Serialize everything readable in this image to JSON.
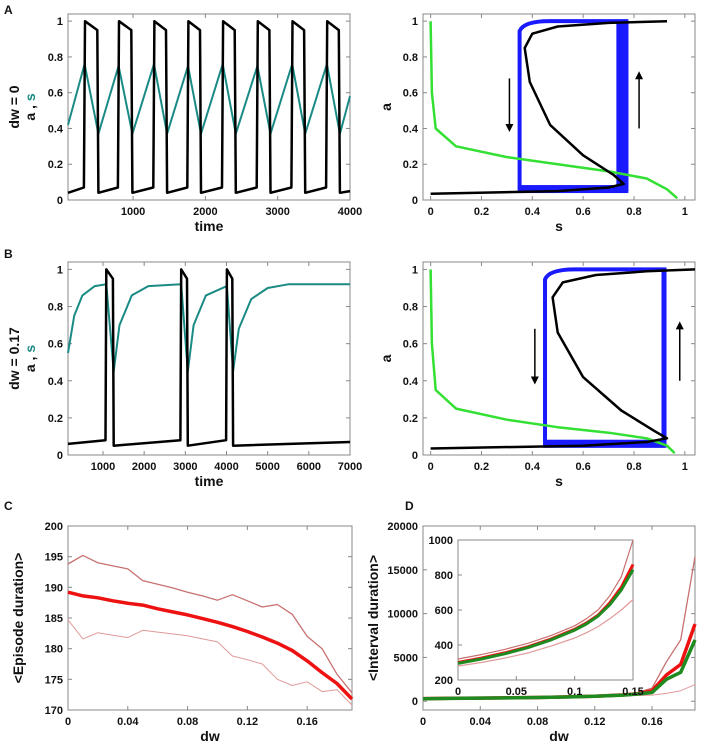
{
  "panel_labels": [
    "A",
    "B",
    "C",
    "D"
  ],
  "row_labels": [
    "dw = 0",
    "dw = 0.17"
  ],
  "colors": {
    "a": "#000000",
    "s": "#1a8a84",
    "nullcline": "#33e033",
    "trajectory": "#1a1aff",
    "mean": "#ee1111",
    "bound": "#c87070",
    "green": "#1f8a1f"
  },
  "chart_data": [
    {
      "id": "A_time",
      "type": "line",
      "xlabel": "time",
      "ylabel_parts": [
        "a",
        ",",
        "s"
      ],
      "xlim": [
        100,
        4000
      ],
      "ylim": [
        0,
        1.04
      ],
      "xticks": [
        1000,
        2000,
        3000,
        4000
      ],
      "yticks": [
        0,
        0.2,
        0.4,
        0.6,
        0.8,
        1
      ],
      "series": [
        {
          "name": "s",
          "color": "#1a8a84",
          "points": [
            [
              100,
              0.42
            ],
            [
              330,
              0.76
            ],
            [
              520,
              0.37
            ],
            [
              800,
              0.75
            ],
            [
              990,
              0.37
            ],
            [
              1290,
              0.76
            ],
            [
              1470,
              0.37
            ],
            [
              1760,
              0.75
            ],
            [
              1940,
              0.37
            ],
            [
              2240,
              0.76
            ],
            [
              2420,
              0.37
            ],
            [
              2720,
              0.75
            ],
            [
              2900,
              0.37
            ],
            [
              3200,
              0.76
            ],
            [
              3380,
              0.37
            ],
            [
              3680,
              0.76
            ],
            [
              3860,
              0.37
            ],
            [
              4000,
              0.58
            ]
          ]
        },
        {
          "name": "a",
          "color": "#000000",
          "points": [
            [
              100,
              0.04
            ],
            [
              320,
              0.07
            ],
            [
              335,
              1
            ],
            [
              505,
              0.95
            ],
            [
              520,
              0.04
            ],
            [
              790,
              0.07
            ],
            [
              805,
              1
            ],
            [
              975,
              0.95
            ],
            [
              990,
              0.04
            ],
            [
              1280,
              0.07
            ],
            [
              1295,
              1
            ],
            [
              1455,
              0.95
            ],
            [
              1470,
              0.04
            ],
            [
              1750,
              0.07
            ],
            [
              1765,
              1
            ],
            [
              1925,
              0.95
            ],
            [
              1940,
              0.04
            ],
            [
              2230,
              0.07
            ],
            [
              2245,
              1
            ],
            [
              2405,
              0.95
            ],
            [
              2420,
              0.04
            ],
            [
              2710,
              0.07
            ],
            [
              2725,
              1
            ],
            [
              2885,
              0.95
            ],
            [
              2900,
              0.04
            ],
            [
              3190,
              0.07
            ],
            [
              3205,
              1
            ],
            [
              3365,
              0.95
            ],
            [
              3380,
              0.04
            ],
            [
              3670,
              0.07
            ],
            [
              3685,
              1
            ],
            [
              3845,
              0.95
            ],
            [
              3860,
              0.04
            ],
            [
              4000,
              0.05
            ]
          ]
        }
      ]
    },
    {
      "id": "A_phase",
      "type": "line",
      "xlabel": "s",
      "ylabel": "a",
      "xlim": [
        -0.03,
        1.04
      ],
      "ylim": [
        0,
        1.04
      ],
      "xticks": [
        0,
        0.2,
        0.4,
        0.6,
        0.8,
        1
      ],
      "yticks": [
        0,
        0.2,
        0.4,
        0.6,
        0.8,
        1
      ],
      "loop": {
        "s_min": 0.35,
        "s_max": 0.77,
        "a_min": 0.05,
        "a_max": 1.0
      },
      "arrows": [
        {
          "s": 0.31,
          "from": 0.68,
          "to": 0.38
        },
        {
          "s": 0.82,
          "from": 0.4,
          "to": 0.72
        }
      ],
      "series": [
        {
          "name": "s-nullcline",
          "color": "#33e033",
          "points": [
            [
              0,
              1
            ],
            [
              0.005,
              0.6
            ],
            [
              0.02,
              0.4
            ],
            [
              0.1,
              0.3
            ],
            [
              0.3,
              0.24
            ],
            [
              0.5,
              0.2
            ],
            [
              0.7,
              0.16
            ],
            [
              0.85,
              0.12
            ],
            [
              0.93,
              0.06
            ],
            [
              0.97,
              0.01
            ]
          ]
        },
        {
          "name": "a-nullcline",
          "color": "#000000",
          "points": [
            [
              0,
              0.035
            ],
            [
              0.5,
              0.05
            ],
            [
              0.7,
              0.07
            ],
            [
              0.76,
              0.09
            ],
            [
              0.72,
              0.14
            ],
            [
              0.6,
              0.25
            ],
            [
              0.47,
              0.42
            ],
            [
              0.39,
              0.66
            ],
            [
              0.37,
              0.85
            ],
            [
              0.4,
              0.93
            ],
            [
              0.5,
              0.97
            ],
            [
              0.7,
              0.99
            ],
            [
              0.93,
              1.0
            ]
          ]
        }
      ]
    },
    {
      "id": "B_time",
      "type": "line",
      "xlabel": "time",
      "ylabel_parts": [
        "a",
        ",",
        "s"
      ],
      "xlim": [
        150,
        7000
      ],
      "ylim": [
        0,
        1.04
      ],
      "xticks": [
        1000,
        2000,
        3000,
        4000,
        5000,
        6000,
        7000
      ],
      "yticks": [
        0,
        0.2,
        0.4,
        0.6,
        0.8,
        1
      ],
      "series": [
        {
          "name": "s",
          "color": "#1a8a84",
          "points": [
            [
              150,
              0.55
            ],
            [
              300,
              0.75
            ],
            [
              500,
              0.86
            ],
            [
              800,
              0.91
            ],
            [
              1080,
              0.92
            ],
            [
              1260,
              0.45
            ],
            [
              1400,
              0.7
            ],
            [
              1700,
              0.86
            ],
            [
              2100,
              0.91
            ],
            [
              2900,
              0.92
            ],
            [
              3060,
              0.45
            ],
            [
              3200,
              0.7
            ],
            [
              3500,
              0.86
            ],
            [
              4010,
              0.91
            ],
            [
              4160,
              0.45
            ],
            [
              4300,
              0.68
            ],
            [
              4600,
              0.84
            ],
            [
              5000,
              0.9
            ],
            [
              5500,
              0.92
            ],
            [
              7000,
              0.92
            ]
          ]
        },
        {
          "name": "a",
          "color": "#000000",
          "points": [
            [
              150,
              0.06
            ],
            [
              1060,
              0.08
            ],
            [
              1080,
              1
            ],
            [
              1240,
              0.95
            ],
            [
              1260,
              0.05
            ],
            [
              2880,
              0.08
            ],
            [
              2900,
              1
            ],
            [
              3040,
              0.95
            ],
            [
              3060,
              0.05
            ],
            [
              3990,
              0.08
            ],
            [
              4010,
              1
            ],
            [
              4140,
              0.95
            ],
            [
              4160,
              0.05
            ],
            [
              7000,
              0.07
            ]
          ]
        }
      ]
    },
    {
      "id": "B_phase",
      "type": "line",
      "xlabel": "s",
      "ylabel": "a",
      "xlim": [
        -0.03,
        1.04
      ],
      "ylim": [
        0,
        1.04
      ],
      "xticks": [
        0,
        0.2,
        0.4,
        0.6,
        0.8,
        1
      ],
      "yticks": [
        0,
        0.2,
        0.4,
        0.6,
        0.8,
        1
      ],
      "loop": {
        "s_min": 0.45,
        "s_max": 0.92,
        "a_min": 0.05,
        "a_max": 1.0
      },
      "arrows": [
        {
          "s": 0.41,
          "from": 0.68,
          "to": 0.38
        },
        {
          "s": 0.98,
          "from": 0.4,
          "to": 0.72
        }
      ],
      "series": [
        {
          "name": "s-nullcline",
          "color": "#33e033",
          "points": [
            [
              0,
              1
            ],
            [
              0.005,
              0.6
            ],
            [
              0.02,
              0.35
            ],
            [
              0.1,
              0.25
            ],
            [
              0.3,
              0.19
            ],
            [
              0.5,
              0.15
            ],
            [
              0.7,
              0.12
            ],
            [
              0.85,
              0.09
            ],
            [
              0.93,
              0.05
            ],
            [
              0.96,
              0.01
            ]
          ]
        },
        {
          "name": "a-nullcline",
          "color": "#000000",
          "points": [
            [
              0,
              0.035
            ],
            [
              0.6,
              0.05
            ],
            [
              0.85,
              0.07
            ],
            [
              0.93,
              0.09
            ],
            [
              0.88,
              0.13
            ],
            [
              0.75,
              0.24
            ],
            [
              0.6,
              0.42
            ],
            [
              0.5,
              0.66
            ],
            [
              0.48,
              0.85
            ],
            [
              0.52,
              0.93
            ],
            [
              0.65,
              0.97
            ],
            [
              0.85,
              0.99
            ],
            [
              1.04,
              1.0
            ]
          ]
        }
      ]
    },
    {
      "id": "C",
      "type": "line",
      "xlabel": "dw",
      "ylabel": "<Episode duration>",
      "xlim": [
        0,
        0.19
      ],
      "ylim": [
        170,
        200
      ],
      "xticks": [
        0,
        0.04,
        0.08,
        0.12,
        0.16
      ],
      "yticks": [
        170,
        175,
        180,
        185,
        190,
        195,
        200
      ],
      "x": [
        0,
        0.01,
        0.02,
        0.03,
        0.04,
        0.05,
        0.06,
        0.07,
        0.08,
        0.09,
        0.1,
        0.11,
        0.12,
        0.13,
        0.14,
        0.15,
        0.16,
        0.17,
        0.18,
        0.19
      ],
      "series": [
        {
          "name": "upper",
          "color": "#c87070",
          "values": [
            193.8,
            195.2,
            194,
            193.5,
            193,
            191.1,
            190.5,
            189.9,
            189.2,
            188.6,
            187.9,
            188.8,
            187.8,
            186.8,
            187.2,
            185.6,
            182,
            180,
            175.8,
            172.8
          ]
        },
        {
          "name": "lower",
          "color": "#e09a9a",
          "values": [
            184.7,
            181.6,
            182.6,
            182.2,
            181.8,
            183,
            182.7,
            182.4,
            182.1,
            181.6,
            181.1,
            178.8,
            178.2,
            177.5,
            175,
            174,
            174.6,
            173,
            173.3,
            170.8
          ]
        },
        {
          "name": "mean",
          "color": "#ee1111",
          "values": [
            189.2,
            188.6,
            188.3,
            187.8,
            187.4,
            187.1,
            186.5,
            186,
            185.5,
            184.9,
            184.3,
            183.6,
            182.8,
            181.9,
            180.9,
            179.7,
            178,
            176.1,
            174.3,
            171.8
          ]
        }
      ]
    },
    {
      "id": "D",
      "type": "line",
      "xlabel": "dw",
      "ylabel": "<Interval duration>",
      "xlim": [
        0,
        0.19
      ],
      "ylim": [
        -1000,
        20000
      ],
      "xticks": [
        0,
        0.04,
        0.08,
        0.12,
        0.16
      ],
      "yticks": [
        0,
        5000,
        10000,
        15000,
        20000
      ],
      "x": [
        0,
        0.02,
        0.04,
        0.06,
        0.08,
        0.1,
        0.12,
        0.14,
        0.15,
        0.16,
        0.17,
        0.18,
        0.19
      ],
      "series": [
        {
          "name": "upper",
          "color": "#c87070",
          "values": [
            320,
            350,
            380,
            420,
            460,
            510,
            600,
            800,
            1000,
            1500,
            4500,
            7000,
            16500
          ]
        },
        {
          "name": "lower",
          "color": "#e09a9a",
          "values": [
            280,
            300,
            330,
            360,
            400,
            440,
            520,
            600,
            660,
            700,
            900,
            1200,
            1900
          ]
        },
        {
          "name": "mean",
          "color": "#ee1111",
          "values": [
            300,
            330,
            360,
            390,
            430,
            490,
            580,
            720,
            860,
            1200,
            3000,
            4200,
            8800
          ]
        },
        {
          "name": "green",
          "color": "#1f8a1f",
          "values": [
            295,
            325,
            355,
            385,
            425,
            480,
            570,
            700,
            830,
            1000,
            2500,
            3300,
            7000
          ]
        }
      ],
      "inset": {
        "xlim": [
          0,
          0.15
        ],
        "ylim": [
          200,
          1000
        ],
        "xticks": [
          0,
          0.05,
          0.1,
          0.15
        ],
        "yticks": [
          200,
          400,
          600,
          800,
          1000
        ],
        "x": [
          0,
          0.02,
          0.04,
          0.06,
          0.08,
          0.1,
          0.11,
          0.12,
          0.13,
          0.14,
          0.15
        ],
        "series": [
          {
            "name": "upper",
            "color": "#c87070",
            "values": [
              320,
              345,
              375,
              410,
              455,
              510,
              550,
              600,
              680,
              790,
              1000
            ]
          },
          {
            "name": "lower",
            "color": "#e09a9a",
            "values": [
              280,
              300,
              325,
              355,
              395,
              440,
              470,
              505,
              550,
              600,
              660
            ]
          },
          {
            "name": "mean",
            "color": "#ee1111",
            "values": [
              300,
              325,
              355,
              390,
              435,
              490,
              525,
              570,
              640,
              730,
              860
            ]
          },
          {
            "name": "green",
            "color": "#1f8a1f",
            "values": [
              295,
              320,
              350,
              385,
              430,
              485,
              520,
              565,
              630,
              715,
              830
            ]
          }
        ]
      }
    }
  ]
}
